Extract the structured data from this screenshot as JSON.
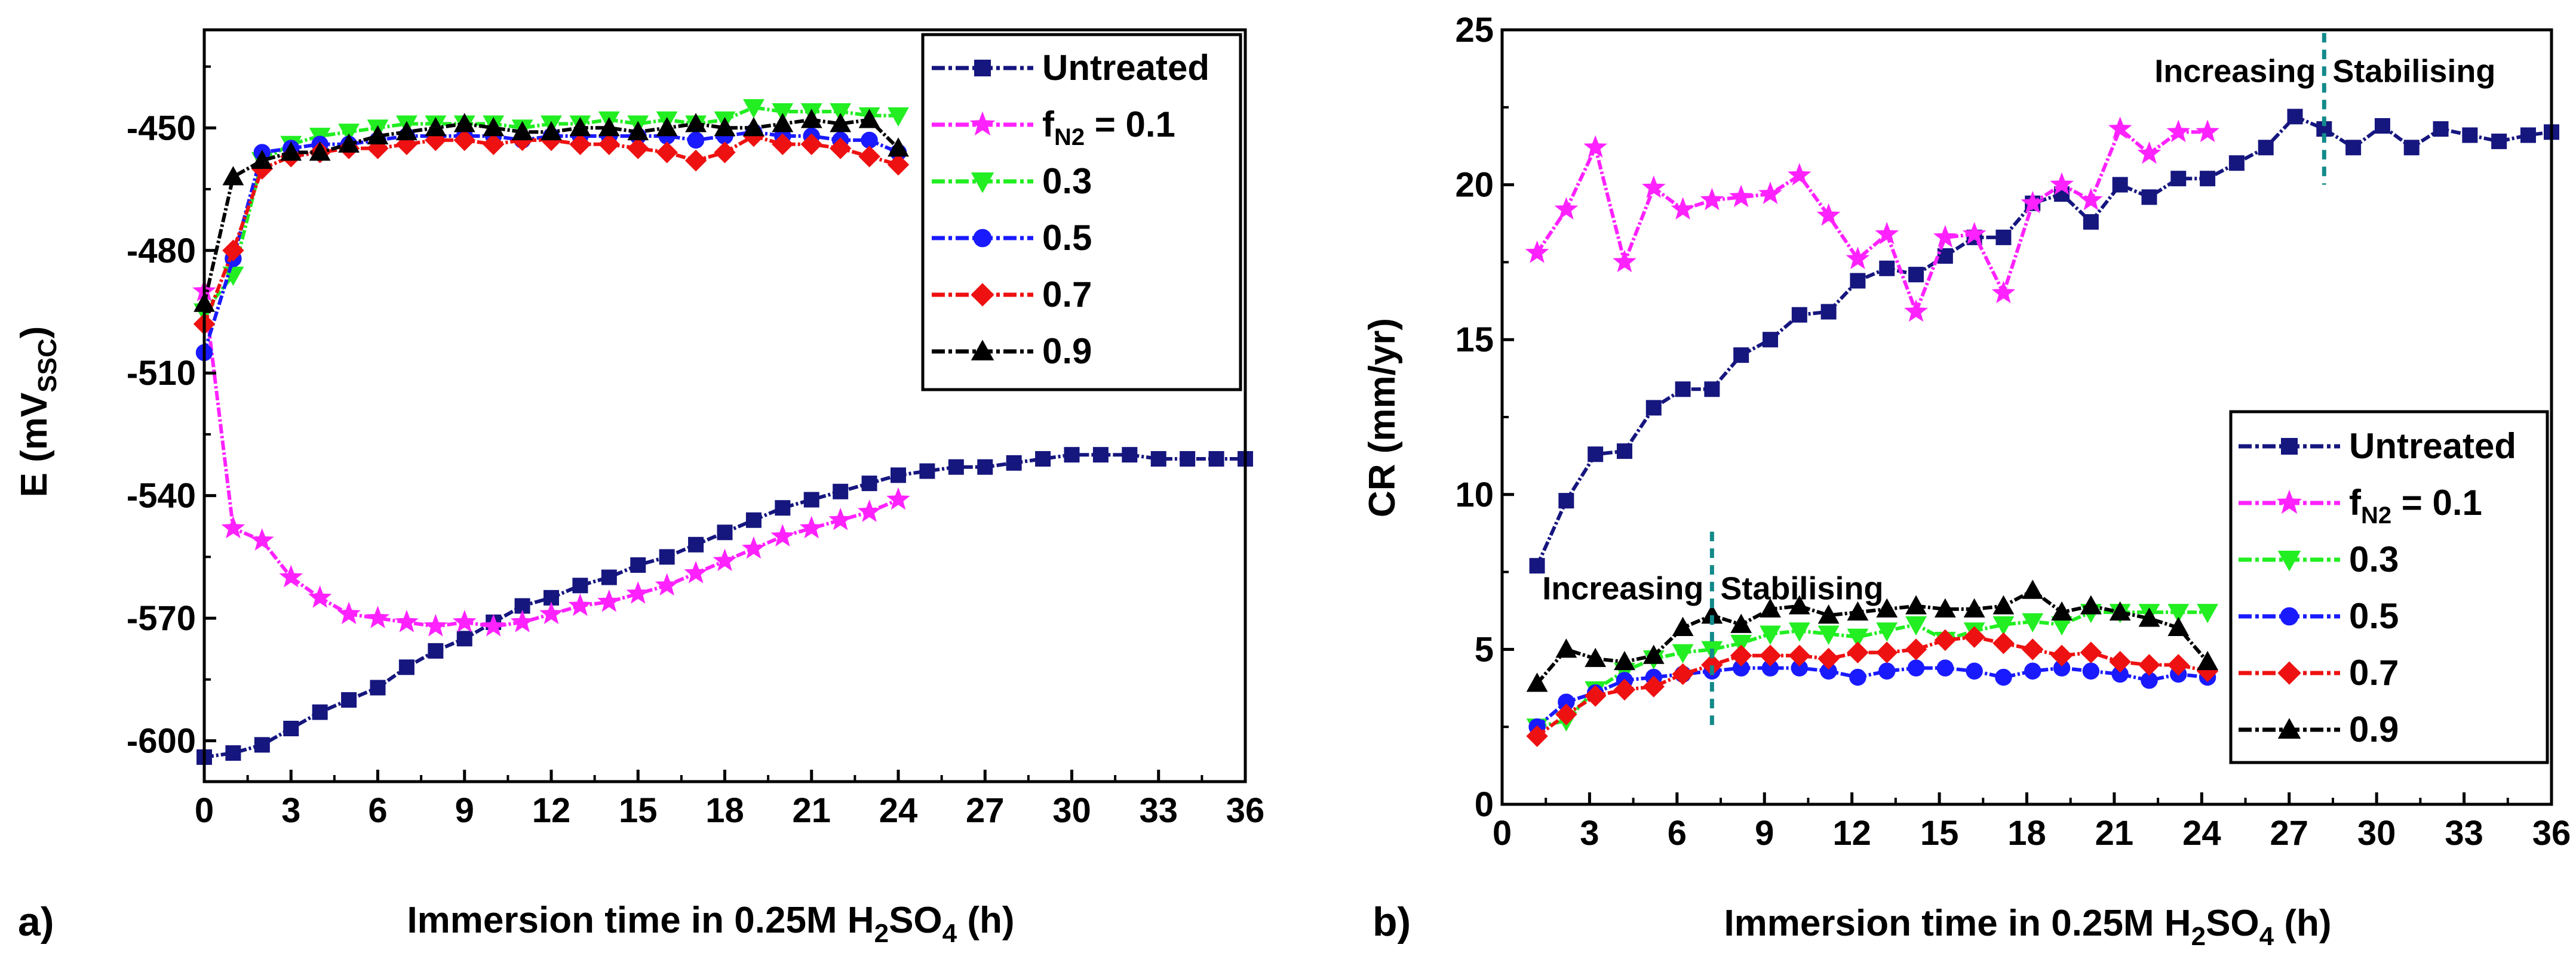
{
  "chart_data": [
    {
      "type": "line",
      "panel_label": "a)",
      "xlabel": "Immersion time in 0.25M H₂SO₄ (h)",
      "ylabel": "E (mVₛₛ꜀)",
      "ylabel_text": "E (mVSSC)",
      "xlim": [
        0,
        36
      ],
      "ylim": [
        -610,
        -426
      ],
      "xticks": [
        "0",
        "3",
        "6",
        "9",
        "12",
        "15",
        "18",
        "21",
        "24",
        "27",
        "30",
        "33",
        "36"
      ],
      "yticks": [
        "-450",
        "-480",
        "-510",
        "-540",
        "-570",
        "-600"
      ],
      "ytick_values": [
        -450,
        -480,
        -510,
        -540,
        -570,
        -600
      ],
      "legend": {
        "placement": "top-right",
        "entries": [
          "Untreated",
          "fN2 = 0.1",
          "0.3",
          "0.5",
          "0.7",
          "0.9"
        ]
      },
      "series": [
        {
          "name": "Untreated",
          "color": "#16167f",
          "marker": "square",
          "x": [
            0,
            1,
            2,
            3,
            4,
            5,
            6,
            7,
            8,
            9,
            10,
            11,
            12,
            13,
            14,
            15,
            16,
            17,
            18,
            19,
            20,
            21,
            22,
            23,
            24,
            25,
            26,
            27,
            28,
            29,
            30,
            31,
            32,
            33,
            34,
            35,
            36
          ],
          "y": [
            -604,
            -603,
            -601,
            -597,
            -593,
            -590,
            -587,
            -582,
            -578,
            -575,
            -571,
            -567,
            -565,
            -562,
            -560,
            -557,
            -555,
            -552,
            -549,
            -546,
            -543,
            -541,
            -539,
            -537,
            -535,
            -534,
            -533,
            -533,
            -532,
            -531,
            -530,
            -530,
            -530,
            -531,
            -531,
            -531,
            -531
          ]
        },
        {
          "name": "fN2 = 0.1",
          "color": "#ff22ff",
          "marker": "star",
          "x": [
            0,
            1,
            2,
            3,
            4,
            5,
            6,
            7,
            8,
            9,
            10,
            11,
            12,
            13,
            14,
            15,
            16,
            17,
            18,
            19,
            20,
            21,
            22,
            23,
            24
          ],
          "y": [
            -490,
            -548,
            -551,
            -560,
            -565,
            -569,
            -570,
            -571,
            -572,
            -571,
            -572,
            -571,
            -569,
            -567,
            -566,
            -564,
            -562,
            -559,
            -556,
            -553,
            -550,
            -548,
            -546,
            -544,
            -541
          ]
        },
        {
          "name": "0.3",
          "color": "#22ee22",
          "marker": "triangle-down",
          "x": [
            0,
            1,
            2,
            3,
            4,
            5,
            6,
            7,
            8,
            9,
            10,
            11,
            12,
            13,
            14,
            15,
            16,
            17,
            18,
            19,
            20,
            21,
            22,
            23,
            24
          ],
          "y": [
            -495,
            -486,
            -458,
            -454,
            -452,
            -451,
            -450,
            -449,
            -449,
            -449,
            -449,
            -450,
            -449,
            -449,
            -448,
            -449,
            -448,
            -449,
            -448,
            -445,
            -446,
            -446,
            -446,
            -447,
            -447
          ]
        },
        {
          "name": "0.5",
          "color": "#1a1aff",
          "marker": "circle",
          "x": [
            0,
            1,
            2,
            3,
            4,
            5,
            6,
            7,
            8,
            9,
            10,
            11,
            12,
            13,
            14,
            15,
            16,
            17,
            18,
            19,
            20,
            21,
            22,
            23,
            24
          ],
          "y": [
            -505,
            -482,
            -456,
            -455,
            -454,
            -454,
            -453,
            -452,
            -452,
            -452,
            -452,
            -453,
            -452,
            -452,
            -452,
            -452,
            -452,
            -453,
            -452,
            -451,
            -452,
            -452,
            -453,
            -453,
            -456
          ]
        },
        {
          "name": "0.7",
          "color": "#ee1111",
          "marker": "diamond",
          "x": [
            0,
            1,
            2,
            3,
            4,
            5,
            6,
            7,
            8,
            9,
            10,
            11,
            12,
            13,
            14,
            15,
            16,
            17,
            18,
            19,
            20,
            21,
            22,
            23,
            24
          ],
          "y": [
            -498,
            -480,
            -460,
            -457,
            -456,
            -455,
            -455,
            -454,
            -453,
            -453,
            -454,
            -453,
            -453,
            -454,
            -454,
            -455,
            -456,
            -458,
            -456,
            -452,
            -454,
            -454,
            -455,
            -457,
            -459
          ]
        },
        {
          "name": "0.9",
          "color": "#000000",
          "marker": "triangle-up",
          "x": [
            0,
            1,
            2,
            3,
            4,
            5,
            6,
            7,
            8,
            9,
            10,
            11,
            12,
            13,
            14,
            15,
            16,
            17,
            18,
            19,
            20,
            21,
            22,
            23,
            24
          ],
          "y": [
            -493,
            -462,
            -458,
            -456,
            -456,
            -454,
            -452,
            -451,
            -450,
            -449,
            -450,
            -451,
            -451,
            -450,
            -450,
            -451,
            -450,
            -449,
            -450,
            -450,
            -449,
            -448,
            -449,
            -448,
            -455
          ]
        }
      ]
    },
    {
      "type": "line",
      "panel_label": "b)",
      "xlabel": "Immersion time in 0.25M H₂SO₄ (h)",
      "ylabel": "CR (mm/yr)",
      "xlim": [
        0,
        36
      ],
      "ylim": [
        0,
        25
      ],
      "xticks": [
        "0",
        "3",
        "6",
        "9",
        "12",
        "15",
        "18",
        "21",
        "24",
        "27",
        "30",
        "33",
        "36"
      ],
      "yticks": [
        "0",
        "5",
        "10",
        "15",
        "20",
        "25"
      ],
      "ytick_values": [
        0,
        5,
        10,
        15,
        20,
        25
      ],
      "legend": {
        "placement": "bottom-right",
        "entries": [
          "Untreated",
          "fN2 = 0.1",
          "0.3",
          "0.5",
          "0.7",
          "0.9"
        ]
      },
      "annotations": [
        {
          "text_left": "Increasing",
          "text_right": "Stabilising",
          "divider_x": 28.2,
          "divider_y": [
            20,
            24.9
          ],
          "text_y": 23.7,
          "color": "#138a8a"
        },
        {
          "text_left": "Increasing",
          "text_right": "Stabilising",
          "divider_x": 7.2,
          "divider_y": [
            2.5,
            8.8
          ],
          "text_y": 7,
          "color": "#138a8a"
        }
      ],
      "series": [
        {
          "name": "Untreated",
          "color": "#16167f",
          "marker": "square",
          "x": [
            1.2,
            2.2,
            3.2,
            4.2,
            5.2,
            6.2,
            7.2,
            8.2,
            9.2,
            10.2,
            11.2,
            12.2,
            13.2,
            14.2,
            15.2,
            16.2,
            17.2,
            18.2,
            19.2,
            20.2,
            21.2,
            22.2,
            23.2,
            24.2,
            25.2,
            26.2,
            27.2,
            28.2,
            29.2,
            30.2,
            31.2,
            32.2,
            33.2,
            34.2,
            35.2,
            36
          ],
          "y": [
            7.7,
            9.8,
            11.3,
            11.4,
            12.8,
            13.4,
            13.4,
            14.5,
            15.0,
            15.8,
            15.9,
            16.9,
            17.3,
            17.1,
            17.7,
            18.3,
            18.3,
            19.4,
            19.7,
            18.8,
            20.0,
            19.6,
            20.2,
            20.2,
            20.7,
            21.2,
            22.2,
            21.8,
            21.2,
            21.9,
            21.2,
            21.8,
            21.6,
            21.4,
            21.6,
            21.7
          ]
        },
        {
          "name": "fN2 = 0.1",
          "color": "#ff22ff",
          "marker": "star",
          "x": [
            1.2,
            2.2,
            3.2,
            4.2,
            5.2,
            6.2,
            7.2,
            8.2,
            9.2,
            10.2,
            11.2,
            12.2,
            13.2,
            14.2,
            15.2,
            16.2,
            17.2,
            18.2,
            19.2,
            20.2,
            21.2,
            22.2,
            23.2,
            24.2
          ],
          "y": [
            17.8,
            19.2,
            21.2,
            17.5,
            19.9,
            19.2,
            19.5,
            19.6,
            19.7,
            20.3,
            19.0,
            17.6,
            18.4,
            15.9,
            18.3,
            18.4,
            16.5,
            19.4,
            20.0,
            19.5,
            21.8,
            21.0,
            21.7,
            21.7
          ]
        },
        {
          "name": "0.3",
          "color": "#22ee22",
          "marker": "triangle-down",
          "x": [
            1.2,
            2.2,
            3.2,
            4.2,
            5.2,
            6.2,
            7.2,
            8.2,
            9.2,
            10.2,
            11.2,
            12.2,
            13.2,
            14.2,
            15.2,
            16.2,
            17.2,
            18.2,
            19.2,
            20.2,
            21.2,
            22.2,
            23.2,
            24.2
          ],
          "y": [
            2.5,
            2.7,
            3.7,
            4.3,
            4.7,
            4.9,
            5.0,
            5.2,
            5.5,
            5.6,
            5.5,
            5.4,
            5.6,
            5.8,
            5.3,
            5.6,
            5.8,
            5.9,
            5.8,
            6.2,
            6.2,
            6.2,
            6.2,
            6.2
          ]
        },
        {
          "name": "0.5",
          "color": "#1a1aff",
          "marker": "circle",
          "x": [
            1.2,
            2.2,
            3.2,
            4.2,
            5.2,
            6.2,
            7.2,
            8.2,
            9.2,
            10.2,
            11.2,
            12.2,
            13.2,
            14.2,
            15.2,
            16.2,
            17.2,
            18.2,
            19.2,
            20.2,
            21.2,
            22.2,
            23.2,
            24.2
          ],
          "y": [
            2.5,
            3.3,
            3.6,
            4.0,
            4.1,
            4.2,
            4.3,
            4.4,
            4.4,
            4.4,
            4.3,
            4.1,
            4.3,
            4.4,
            4.4,
            4.3,
            4.1,
            4.3,
            4.4,
            4.3,
            4.2,
            4.0,
            4.2,
            4.1
          ]
        },
        {
          "name": "0.7",
          "color": "#ee1111",
          "marker": "diamond",
          "x": [
            1.2,
            2.2,
            3.2,
            4.2,
            5.2,
            6.2,
            7.2,
            8.2,
            9.2,
            10.2,
            11.2,
            12.2,
            13.2,
            14.2,
            15.2,
            16.2,
            17.2,
            18.2,
            19.2,
            20.2,
            21.2,
            22.2,
            23.2,
            24.2
          ],
          "y": [
            2.2,
            2.9,
            3.5,
            3.7,
            3.8,
            4.2,
            4.5,
            4.8,
            4.8,
            4.8,
            4.7,
            4.9,
            4.9,
            5.0,
            5.3,
            5.4,
            5.2,
            5.0,
            4.8,
            4.9,
            4.6,
            4.5,
            4.5,
            4.3
          ]
        },
        {
          "name": "0.9",
          "color": "#000000",
          "marker": "triangle-up",
          "x": [
            1.2,
            2.2,
            3.2,
            4.2,
            5.2,
            6.2,
            7.2,
            8.2,
            9.2,
            10.2,
            11.2,
            12.2,
            13.2,
            14.2,
            15.2,
            16.2,
            17.2,
            18.2,
            19.2,
            20.2,
            21.2,
            22.2,
            23.2,
            24.2
          ],
          "y": [
            3.9,
            5.0,
            4.7,
            4.6,
            4.8,
            5.7,
            6.1,
            5.8,
            6.3,
            6.4,
            6.1,
            6.2,
            6.3,
            6.4,
            6.3,
            6.3,
            6.4,
            6.9,
            6.2,
            6.4,
            6.2,
            6.0,
            5.7,
            4.6
          ]
        }
      ]
    }
  ]
}
